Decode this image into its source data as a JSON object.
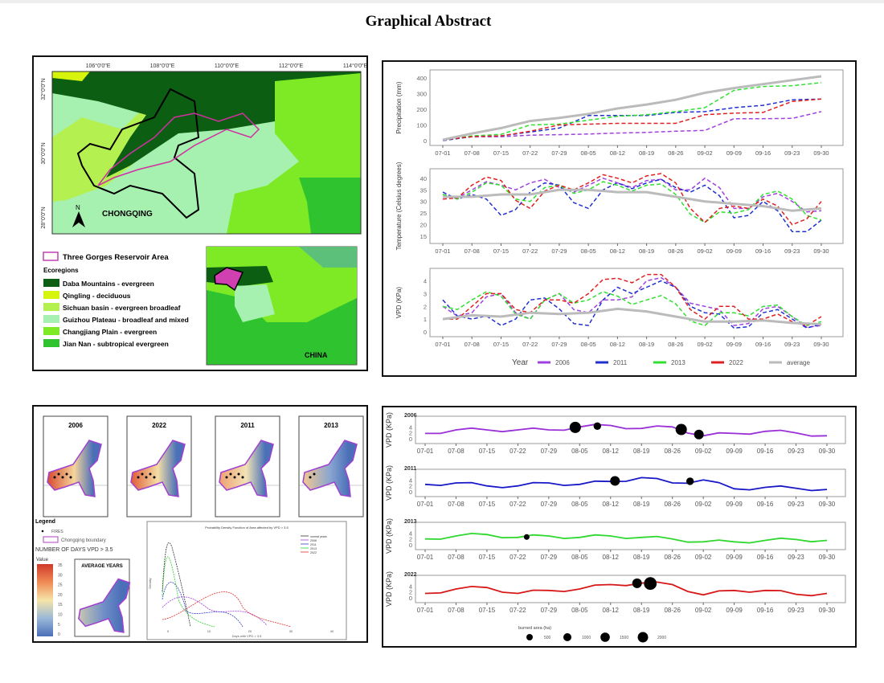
{
  "title": "Graphical Abstract",
  "map_panel": {
    "lon_labels": [
      "106°0'0\"E",
      "108°0'0\"E",
      "110°0'0\"E",
      "112°0'0\"E",
      "114°0'0\"E"
    ],
    "lat_labels": [
      "32°0'0\"N",
      "30°0'0\"N",
      "28°0'0\"N"
    ],
    "north_label": "N",
    "region_label": "CHONGQING",
    "inset_label": "CHINA",
    "legend": {
      "reservoir": "Three Gorges Reservoir Area",
      "ecoregions_title": "Ecoregions",
      "items": [
        {
          "label": "Daba Mountains - evergreen",
          "color": "#0b5e12"
        },
        {
          "label": "Qingling - deciduous",
          "color": "#d7f50c"
        },
        {
          "label": "Sichuan basin - evergreen broadleaf",
          "color": "#b4f050"
        },
        {
          "label": "Guizhou Plateau - broadleaf and mixed",
          "color": "#a6f0b0"
        },
        {
          "label": "Changjiang Plain - evergreen",
          "color": "#7eea26"
        },
        {
          "label": "Jian Nan - subtropical evergreen",
          "color": "#2fc42f"
        }
      ]
    }
  },
  "chart_data": [
    {
      "type": "line",
      "ylabel": "Precipitation (mm)",
      "ylim": [
        0,
        420
      ],
      "yticks": [
        0,
        100,
        200,
        300,
        400
      ],
      "x": [
        "07-01",
        "07-08",
        "07-15",
        "07-22",
        "07-29",
        "08-05",
        "08-12",
        "08-19",
        "08-26",
        "09-02",
        "09-09",
        "09-16",
        "09-23",
        "09-30"
      ],
      "series": [
        {
          "name": "2006",
          "color": "#a040e0",
          "values": [
            5,
            25,
            25,
            35,
            38,
            42,
            48,
            52,
            60,
            65,
            140,
            140,
            142,
            185
          ]
        },
        {
          "name": "2011",
          "color": "#2030d0",
          "values": [
            0,
            25,
            30,
            55,
            80,
            160,
            160,
            160,
            180,
            185,
            210,
            225,
            260,
            265
          ]
        },
        {
          "name": "2013",
          "color": "#30e030",
          "values": [
            5,
            30,
            40,
            100,
            105,
            130,
            155,
            165,
            185,
            210,
            320,
            345,
            350,
            370
          ]
        },
        {
          "name": "2022",
          "color": "#e02020",
          "values": [
            5,
            25,
            30,
            60,
            100,
            105,
            110,
            110,
            110,
            165,
            175,
            180,
            250,
            265
          ]
        },
        {
          "name": "average",
          "color": "#bbbbbb",
          "values": [
            5,
            45,
            80,
            125,
            145,
            170,
            205,
            230,
            260,
            305,
            335,
            360,
            385,
            410
          ]
        }
      ]
    },
    {
      "type": "line",
      "ylabel": "Temperature (Celsius degrees)",
      "ylim": [
        14,
        42
      ],
      "yticks": [
        15,
        20,
        25,
        30,
        35,
        40
      ],
      "x": [
        "07-01",
        "07-08",
        "07-15",
        "07-22",
        "07-29",
        "08-05",
        "08-12",
        "08-19",
        "08-26",
        "09-02",
        "09-09",
        "09-16",
        "09-23",
        "09-30"
      ],
      "series": [
        {
          "name": "2006",
          "color": "#a040e0",
          "values": [
            33,
            35,
            37,
            38,
            36,
            37,
            38,
            39,
            35,
            40,
            27,
            32,
            30,
            26
          ]
        },
        {
          "name": "2011",
          "color": "#2030d0",
          "values": [
            34,
            33,
            24,
            34,
            37,
            27,
            38,
            38,
            36,
            37,
            23,
            30,
            17,
            22
          ]
        },
        {
          "name": "2013",
          "color": "#30e030",
          "values": [
            33,
            34,
            37,
            30,
            37,
            35,
            37,
            37,
            33,
            21,
            25,
            33,
            31,
            22
          ]
        },
        {
          "name": "2022",
          "color": "#e02020",
          "values": [
            31,
            37,
            39,
            27,
            37,
            38,
            40,
            41,
            38,
            21,
            28,
            31,
            20,
            30
          ]
        },
        {
          "name": "average",
          "color": "#bbbbbb",
          "values": [
            32,
            32,
            33,
            33,
            35,
            35,
            34,
            34,
            32,
            30,
            29,
            28,
            26,
            27
          ]
        }
      ]
    },
    {
      "type": "line",
      "ylabel": "VPD (KPa)",
      "ylim": [
        0,
        4.6
      ],
      "yticks": [
        0,
        1,
        2,
        3,
        4
      ],
      "x": [
        "07-01",
        "07-08",
        "07-15",
        "07-22",
        "07-29",
        "08-05",
        "08-12",
        "08-19",
        "08-26",
        "09-02",
        "09-09",
        "09-16",
        "09-23",
        "09-30"
      ],
      "series": [
        {
          "name": "2006",
          "color": "#a040e0",
          "values": [
            2,
            1.5,
            3,
            1,
            3,
            1.5,
            2.5,
            4,
            3.5,
            2,
            0.5,
            1.8,
            1.2,
            0.5
          ]
        },
        {
          "name": "2011",
          "color": "#2030d0",
          "values": [
            2.5,
            1,
            0.5,
            2.5,
            1.8,
            0.5,
            3.5,
            3.5,
            3.5,
            1.5,
            0.3,
            1.5,
            1,
            0.6
          ]
        },
        {
          "name": "2013",
          "color": "#30e030",
          "values": [
            2,
            2.5,
            2.8,
            1,
            3,
            2.5,
            2.8,
            2.5,
            2.2,
            0.5,
            1.5,
            2,
            1.2,
            0.8
          ]
        },
        {
          "name": "2022",
          "color": "#e02020",
          "values": [
            1,
            2,
            3,
            1.5,
            2.5,
            3,
            4.2,
            4.5,
            3.5,
            1,
            2,
            1,
            0.8,
            1.2
          ]
        },
        {
          "name": "average",
          "color": "#bbbbbb",
          "values": [
            1,
            1.3,
            1.2,
            1.5,
            1.4,
            1.5,
            1.8,
            1.6,
            1.2,
            0.8,
            0.8,
            0.9,
            0.7,
            0.6
          ]
        }
      ],
      "legend": {
        "title": "Year",
        "placement": "bottom"
      }
    },
    {
      "type": "line",
      "ylabel": "VPD (KPa)",
      "ylim": [
        0,
        6
      ],
      "yticks": [
        0,
        2,
        4
      ],
      "x": [
        "07-01",
        "07-08",
        "07-15",
        "07-22",
        "07-29",
        "08-05",
        "08-12",
        "08-19",
        "08-26",
        "09-02",
        "09-09",
        "09-16",
        "09-23",
        "09-30"
      ],
      "series": [
        {
          "name": "2006",
          "color": "#9a30d8",
          "values": [
            1.8,
            3,
            3,
            3,
            3,
            4,
            4.5,
            3.5,
            4,
            1,
            1.8,
            2.5,
            2,
            1
          ],
          "fires": [
            {
              "x": "08-04",
              "area": 1500
            },
            {
              "x": "08-09",
              "area": 500
            },
            {
              "x": "08-28",
              "area": 1500
            },
            {
              "x": "09-01",
              "area": 1000
            }
          ]
        },
        {
          "name": "2011",
          "color": "#1818c8",
          "values": [
            2.5,
            3,
            2,
            2,
            3,
            2.5,
            3.5,
            4.8,
            3,
            4,
            1,
            1.5,
            1.2,
            0.8
          ],
          "fires": [
            {
              "x": "08-13",
              "area": 1000
            },
            {
              "x": "08-30",
              "area": 500
            }
          ]
        },
        {
          "name": "2013",
          "color": "#2ed82e",
          "values": [
            2,
            3,
            3.5,
            2.5,
            3,
            2.5,
            3,
            2.5,
            2,
            1,
            1,
            1.5,
            1.8,
            1.5
          ],
          "fires": [
            {
              "x": "07-24",
              "area": 200
            }
          ]
        },
        {
          "name": "2022",
          "color": "#d81818",
          "values": [
            1.5,
            3,
            3.5,
            1.5,
            2.5,
            3,
            4.5,
            5,
            4.5,
            1,
            2.5,
            2.5,
            1.2,
            1.5
          ],
          "fires": [
            {
              "x": "08-18",
              "area": 1000
            },
            {
              "x": "08-21",
              "area": 2000
            }
          ]
        }
      ],
      "size_legend": {
        "title": "burned area (ha)",
        "values": [
          500,
          1000,
          1500,
          2000
        ]
      }
    }
  ],
  "vpd_maps": {
    "years": [
      "2006",
      "2022",
      "2011",
      "2013"
    ],
    "legend_title": "Legend",
    "fires_label": "FIRES",
    "boundary_label": "Chongqing boundary",
    "days_title": "NUMBER OF DAYS VPD > 3.5",
    "value_label": "Value",
    "scale_ticks": [
      "35",
      "30",
      "25",
      "20",
      "15",
      "10",
      "5",
      "0"
    ],
    "average_label": "AVERAGE YEARS",
    "pdf": {
      "title": "Probability Density Function of Area affected by VPD > 3.5",
      "xlabel": "Days with VPD > 3.5",
      "ylabel": "Density",
      "xticks": [
        "0",
        "10",
        "20",
        "30",
        "40"
      ],
      "legend": [
        "normal years",
        "2006",
        "2011",
        "2013",
        "2022"
      ]
    }
  }
}
